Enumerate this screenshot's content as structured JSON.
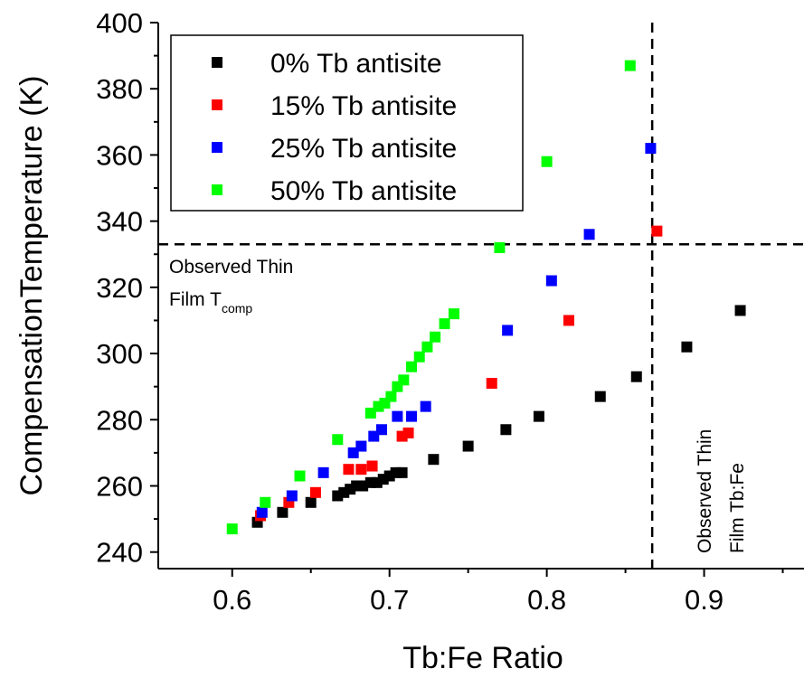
{
  "chart_data": {
    "type": "scatter",
    "xlabel": "Tb:Fe Ratio",
    "ylabel": "CompensationTemperature (K)",
    "xlim": [
      0.553,
      0.9635
    ],
    "ylim": [
      235,
      400
    ],
    "xticks": [
      "0.6",
      "0.7",
      "0.8",
      "0.9"
    ],
    "yticks": [
      "240",
      "260",
      "280",
      "300",
      "320",
      "340",
      "360",
      "380",
      "400"
    ],
    "xtick_values": [
      0.6,
      0.7,
      0.8,
      0.9
    ],
    "ytick_values": [
      240,
      260,
      280,
      300,
      320,
      340,
      360,
      380,
      400
    ],
    "grid": false,
    "legend_position": "top-left",
    "series": [
      {
        "name": "0% Tb antisite",
        "color": "#000000",
        "x": [
          0.616,
          0.632,
          0.65,
          0.667,
          0.671,
          0.675,
          0.679,
          0.683,
          0.688,
          0.692,
          0.696,
          0.7,
          0.704,
          0.708,
          0.728,
          0.75,
          0.774,
          0.795,
          0.834,
          0.857,
          0.889,
          0.923
        ],
        "y": [
          249,
          252,
          255,
          257,
          258,
          259,
          260,
          260,
          261,
          261,
          262,
          263,
          264,
          264,
          268,
          272,
          277,
          281,
          287,
          293,
          302,
          313
        ]
      },
      {
        "name": "15% Tb antisite",
        "color": "#ff0000",
        "x": [
          0.618,
          0.636,
          0.653,
          0.674,
          0.682,
          0.689,
          0.708,
          0.712,
          0.765,
          0.814,
          0.87
        ],
        "y": [
          251,
          255,
          258,
          265,
          265,
          266,
          275,
          276,
          291,
          310,
          337
        ]
      },
      {
        "name": "25% Tb antisite",
        "color": "#0000ff",
        "x": [
          0.619,
          0.638,
          0.658,
          0.677,
          0.682,
          0.69,
          0.695,
          0.705,
          0.714,
          0.723,
          0.775,
          0.803,
          0.827,
          0.866
        ],
        "y": [
          252,
          257,
          264,
          270,
          272,
          275,
          277,
          281,
          281,
          284,
          307,
          322,
          336,
          362
        ]
      },
      {
        "name": "50% Tb antisite",
        "color": "#00ff00",
        "x": [
          0.6,
          0.621,
          0.643,
          0.667,
          0.688,
          0.693,
          0.697,
          0.701,
          0.705,
          0.709,
          0.714,
          0.719,
          0.724,
          0.729,
          0.735,
          0.741,
          0.77,
          0.8,
          0.853
        ],
        "y": [
          247,
          255,
          263,
          274,
          282,
          284,
          285,
          287,
          290,
          292,
          296,
          299,
          302,
          305,
          309,
          312,
          332,
          358,
          387
        ]
      }
    ],
    "reference_lines": [
      {
        "orientation": "horizontal",
        "value": 333,
        "style": "dashed",
        "color": "#000000"
      },
      {
        "orientation": "vertical",
        "value": 0.867,
        "style": "dashed",
        "color": "#000000"
      }
    ],
    "annotations": {
      "horizontal_line_label": {
        "line1": "Observed Thin",
        "line2_main": "Film T",
        "line2_sub": "comp"
      },
      "vertical_line_label": {
        "line1": "Observed Thin",
        "line2": "Film Tb:Fe"
      }
    }
  }
}
